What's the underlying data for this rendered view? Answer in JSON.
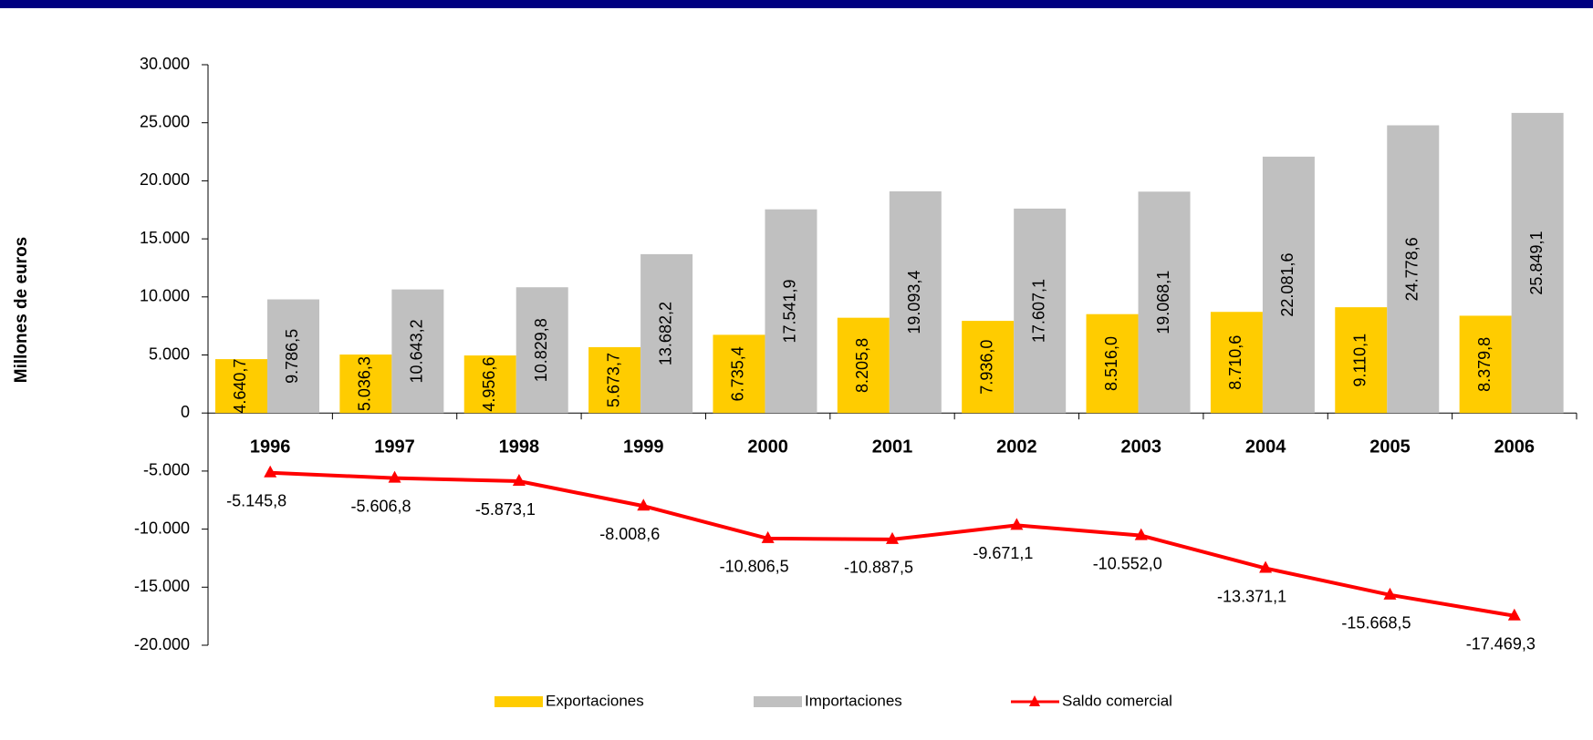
{
  "chart_data": {
    "type": "bar",
    "y_label": "Millones de euros",
    "categories": [
      "1996",
      "1997",
      "1998",
      "1999",
      "2000",
      "2001",
      "2002",
      "2003",
      "2004",
      "2005",
      "2006"
    ],
    "series": [
      {
        "name": "Exportaciones",
        "color": "#ffcc00",
        "type": "bar",
        "values": [
          4640.7,
          5036.3,
          4956.6,
          5673.7,
          6735.4,
          8205.8,
          7936.0,
          8516.0,
          8710.6,
          9110.1,
          8379.8
        ],
        "value_labels": [
          "4.640,7",
          "5.036,3",
          "4.956,6",
          "5.673,7",
          "6.735,4",
          "8.205,8",
          "7.936,0",
          "8.516,0",
          "8.710,6",
          "9.110,1",
          "8.379,8"
        ]
      },
      {
        "name": "Importaciones",
        "color": "#c0c0c0",
        "type": "bar",
        "values": [
          9786.5,
          10643.2,
          10829.8,
          13682.2,
          17541.9,
          19093.4,
          17607.1,
          19068.1,
          22081.6,
          24778.6,
          25849.1
        ],
        "value_labels": [
          "9.786,5",
          "10.643,2",
          "10.829,8",
          "13.682,2",
          "17.541,9",
          "19.093,4",
          "17.607,1",
          "19.068,1",
          "22.081,6",
          "24.778,6",
          "25.849,1"
        ]
      },
      {
        "name": "Saldo comercial",
        "color": "#ff0000",
        "type": "line",
        "values": [
          -5145.8,
          -5606.8,
          -5873.1,
          -8008.6,
          -10806.5,
          -10887.5,
          -9671.1,
          -10552.0,
          -13371.1,
          -15668.5,
          -17469.3
        ],
        "value_labels": [
          "-5.145,8",
          "-5.606,8",
          "-5.873,1",
          "-8.008,6",
          "-10.806,5",
          "-10.887,5",
          "-9.671,1",
          "-10.552,0",
          "-13.371,1",
          "-15.668,5",
          "-17.469,3"
        ]
      }
    ],
    "ylim": [
      -20000,
      30000
    ],
    "yticks": [
      {
        "value": -20000,
        "label": "-20.000"
      },
      {
        "value": -15000,
        "label": "-15.000"
      },
      {
        "value": -10000,
        "label": "-10.000"
      },
      {
        "value": -5000,
        "label": "-5.000"
      },
      0,
      {
        "value": 5000,
        "label": "5.000"
      },
      {
        "value": 10000,
        "label": "10.000"
      },
      {
        "value": 15000,
        "label": "15.000"
      },
      {
        "value": 20000,
        "label": "20.000"
      },
      {
        "value": 25000,
        "label": "25.000"
      },
      {
        "value": 30000,
        "label": "30.000"
      }
    ],
    "grid": false,
    "legend": "bottom"
  }
}
